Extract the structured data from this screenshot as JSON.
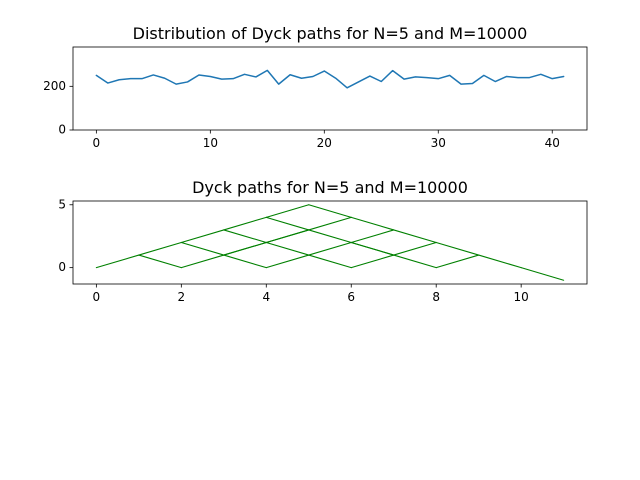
{
  "chart_data": [
    {
      "type": "line",
      "title": "Distribution of Dyck paths for N=5 and M=10000",
      "xlabel": "",
      "ylabel": "",
      "xlim": [
        -2.05,
        43.05
      ],
      "ylim": [
        0,
        380
      ],
      "xticks": [
        0,
        10,
        20,
        30,
        40
      ],
      "yticks": [
        0,
        200
      ],
      "x": [
        0,
        1,
        2,
        3,
        4,
        5,
        6,
        7,
        8,
        9,
        10,
        11,
        12,
        13,
        14,
        15,
        16,
        17,
        18,
        19,
        20,
        21,
        22,
        23,
        24,
        25,
        26,
        27,
        28,
        29,
        30,
        31,
        32,
        33,
        34,
        35,
        36,
        37,
        38,
        39,
        40,
        41
      ],
      "series": [
        {
          "name": "counts",
          "color": "#1f77b4",
          "values": [
            250,
            215,
            230,
            235,
            235,
            252,
            237,
            210,
            220,
            252,
            245,
            233,
            235,
            255,
            243,
            273,
            210,
            253,
            237,
            245,
            270,
            237,
            193,
            220,
            247,
            222,
            272,
            233,
            243,
            240,
            235,
            250,
            210,
            213,
            250,
            222,
            245,
            240,
            240,
            255,
            235,
            245
          ]
        }
      ]
    },
    {
      "type": "line",
      "title": "Dyck paths for N=5 and M=10000",
      "xlabel": "",
      "ylabel": "",
      "xlim": [
        -0.55,
        11.55
      ],
      "ylim": [
        -1.3,
        5.3
      ],
      "xticks": [
        0,
        2,
        4,
        6,
        8,
        10
      ],
      "yticks": [
        0,
        5
      ],
      "line_color": "#008000",
      "segments": [
        [
          [
            0,
            0
          ],
          [
            1,
            1
          ]
        ],
        [
          [
            1,
            1
          ],
          [
            2,
            2
          ]
        ],
        [
          [
            2,
            2
          ],
          [
            3,
            3
          ]
        ],
        [
          [
            3,
            3
          ],
          [
            4,
            4
          ]
        ],
        [
          [
            4,
            4
          ],
          [
            5,
            5
          ]
        ],
        [
          [
            5,
            5
          ],
          [
            6,
            4
          ]
        ],
        [
          [
            6,
            4
          ],
          [
            7,
            3
          ]
        ],
        [
          [
            7,
            3
          ],
          [
            8,
            2
          ]
        ],
        [
          [
            8,
            2
          ],
          [
            9,
            1
          ]
        ],
        [
          [
            9,
            1
          ],
          [
            10,
            0
          ]
        ],
        [
          [
            10,
            0
          ],
          [
            11,
            -1
          ]
        ],
        [
          [
            1,
            1
          ],
          [
            2,
            0
          ]
        ],
        [
          [
            2,
            0
          ],
          [
            3,
            1
          ]
        ],
        [
          [
            3,
            1
          ],
          [
            4,
            2
          ]
        ],
        [
          [
            4,
            2
          ],
          [
            5,
            3
          ]
        ],
        [
          [
            5,
            3
          ],
          [
            6,
            2
          ]
        ],
        [
          [
            6,
            2
          ],
          [
            7,
            1
          ]
        ],
        [
          [
            7,
            1
          ],
          [
            8,
            0
          ]
        ],
        [
          [
            8,
            0
          ],
          [
            9,
            1
          ]
        ],
        [
          [
            2,
            2
          ],
          [
            3,
            1
          ]
        ],
        [
          [
            3,
            1
          ],
          [
            4,
            0
          ]
        ],
        [
          [
            4,
            0
          ],
          [
            5,
            1
          ]
        ],
        [
          [
            5,
            1
          ],
          [
            6,
            0
          ]
        ],
        [
          [
            6,
            0
          ],
          [
            7,
            1
          ]
        ],
        [
          [
            3,
            3
          ],
          [
            4,
            2
          ]
        ],
        [
          [
            4,
            2
          ],
          [
            5,
            1
          ]
        ],
        [
          [
            5,
            1
          ],
          [
            6,
            2
          ]
        ],
        [
          [
            6,
            2
          ],
          [
            7,
            3
          ]
        ],
        [
          [
            4,
            4
          ],
          [
            5,
            3
          ]
        ],
        [
          [
            5,
            3
          ],
          [
            6,
            4
          ]
        ],
        [
          [
            3,
            1
          ],
          [
            4,
            2
          ]
        ],
        [
          [
            7,
            1
          ],
          [
            8,
            2
          ]
        ],
        [
          [
            6,
            2
          ],
          [
            7,
            1
          ]
        ],
        [
          [
            4,
            2
          ],
          [
            5,
            3
          ]
        ]
      ]
    }
  ]
}
